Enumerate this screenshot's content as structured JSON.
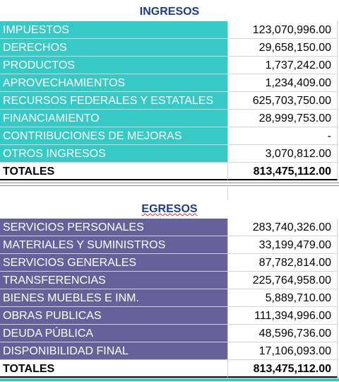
{
  "ingresos": {
    "title": "INGRESOS",
    "rows": [
      [
        "IMPUESTOS",
        "123,070,996.00"
      ],
      [
        "DERECHOS",
        "29,658,150.00"
      ],
      [
        "PRODUCTOS",
        "1,737,242.00"
      ],
      [
        "APROVECHAMIENTOS",
        "1,234,409.00"
      ],
      [
        "RECURSOS FEDERALES Y ESTATALES",
        "625,703,750.00"
      ],
      [
        "FINANCIAMIENTO",
        "28,999,753.00"
      ],
      [
        "CONTRIBUCIONES DE MEJORAS",
        "-"
      ],
      [
        "OTROS INGRESOS",
        "3,070,812.00"
      ]
    ],
    "total": [
      "TOTALES",
      "813,475,112.00"
    ]
  },
  "egresos": {
    "title": "EGRESOS",
    "rows": [
      [
        "SERVICIOS PERSONALES",
        "283,740,326.00"
      ],
      [
        "MATERIALES Y SUMINISTROS",
        "33,199,479.00"
      ],
      [
        "SERVICIOS GENERALES",
        "87,782,814.00"
      ],
      [
        "TRANSFERENCIAS",
        "225,764,958.00"
      ],
      [
        "BIENES MUEBLES E INM.",
        "5,889,710.00"
      ],
      [
        "OBRAS PUBLICAS",
        "111,394,996.00"
      ],
      [
        "DEUDA PÚBLICA",
        "48,596,736.00"
      ],
      [
        "DISPONIBILIDAD FINAL",
        "17,106,093.00"
      ]
    ],
    "total": [
      "TOTALES",
      "813,475,112.00"
    ]
  }
}
